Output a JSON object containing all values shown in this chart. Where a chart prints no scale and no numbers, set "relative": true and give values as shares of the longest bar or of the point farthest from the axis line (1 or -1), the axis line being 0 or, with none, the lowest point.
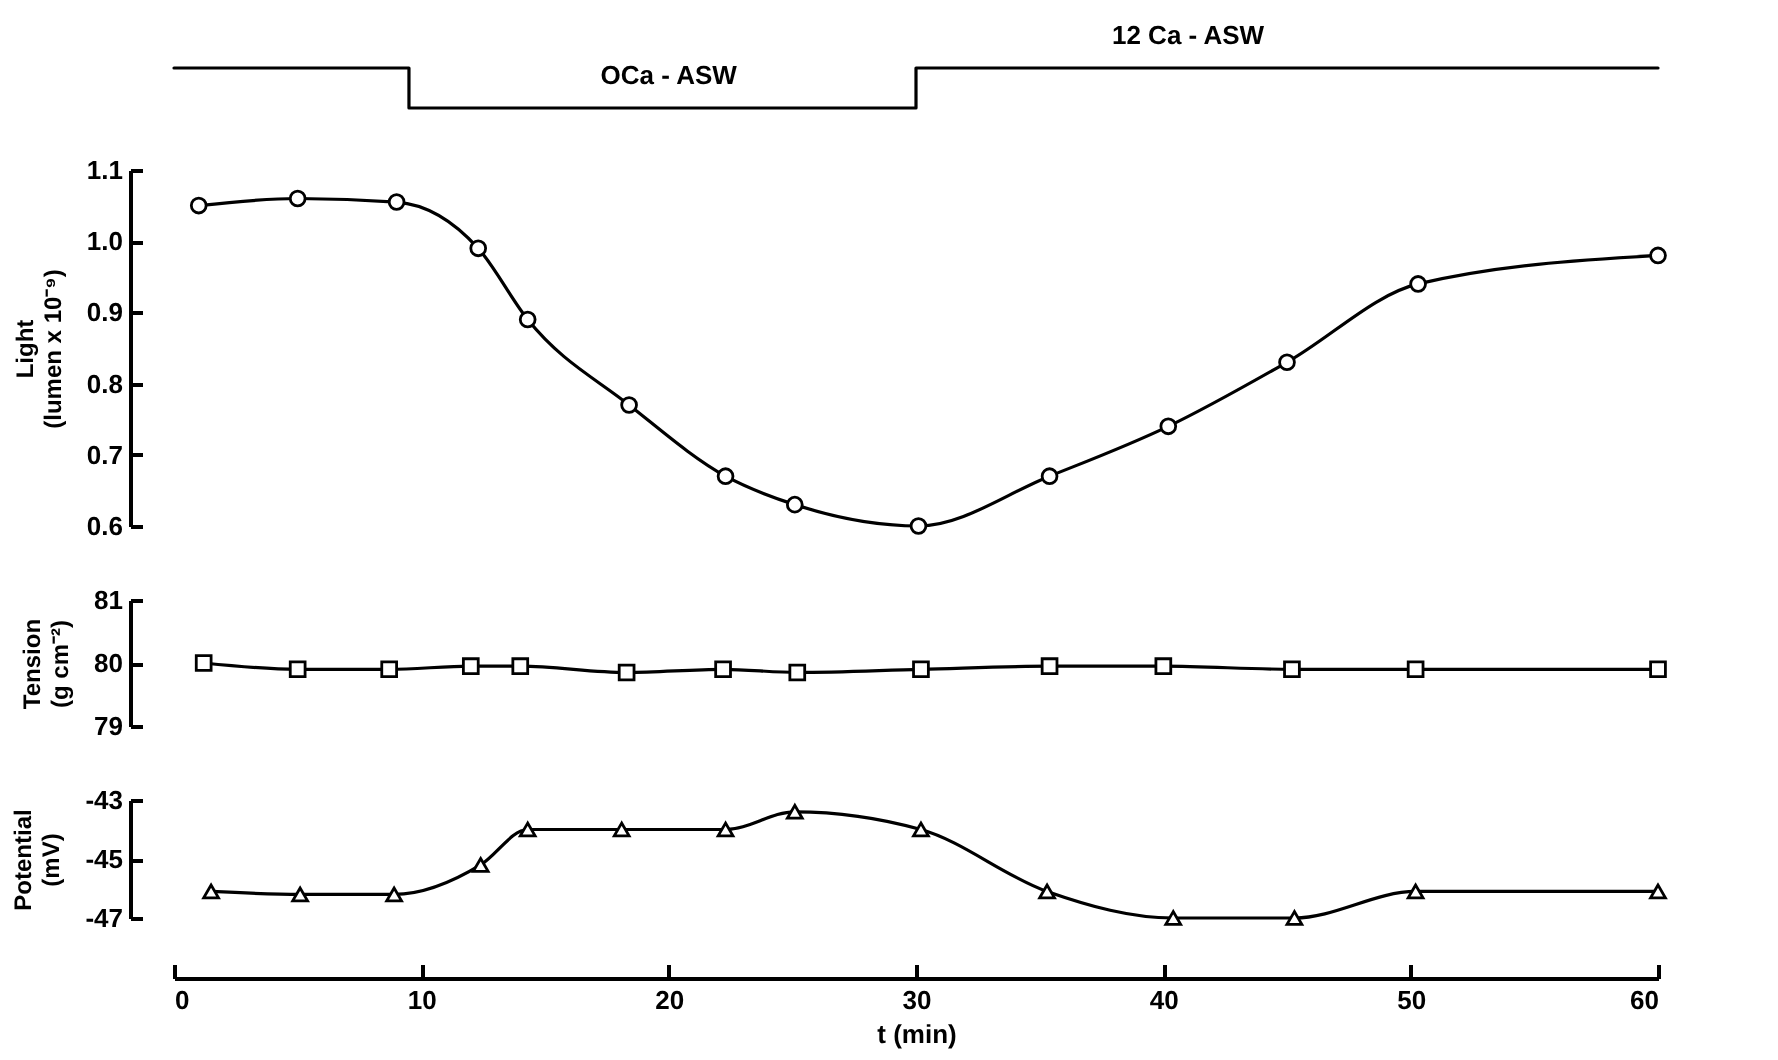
{
  "chart_data": [
    {
      "type": "step",
      "relative": true,
      "xlim": [
        0,
        60
      ],
      "series": [
        {
          "color": "#000000",
          "x": [
            0,
            9.5,
            30,
            60
          ],
          "values": [
            1,
            0,
            1,
            1
          ]
        }
      ],
      "annotations": [
        {
          "text": "OCa - ASW",
          "x": 20,
          "y": 0
        },
        {
          "text": "12 Ca - ASW",
          "x": 41,
          "y": 1
        }
      ]
    },
    {
      "type": "line",
      "ylabel": "Light\n(lumen x 10⁻⁹)",
      "xlim": [
        0,
        60
      ],
      "ylim": [
        0.6,
        1.1
      ],
      "yticks": [
        {
          "value": 0.6,
          "label": "0.6"
        },
        {
          "value": 0.7,
          "label": "0.7"
        },
        {
          "value": 0.8,
          "label": "0.8"
        },
        {
          "value": 0.9,
          "label": "0.9"
        },
        {
          "value": 1.0,
          "label": "1.0"
        },
        {
          "value": 1.1,
          "label": "1.1"
        }
      ],
      "tick_labels": "y",
      "marker": "circle",
      "line_style": "solid",
      "series": [
        {
          "color": "#000000",
          "x": [
            1,
            5,
            9,
            12.3,
            14.3,
            18.4,
            22.3,
            25.1,
            30.1,
            35.4,
            40.2,
            45,
            50.3,
            60
          ],
          "values": [
            1.05,
            1.06,
            1.055,
            0.99,
            0.89,
            0.77,
            0.67,
            0.63,
            0.6,
            0.67,
            0.74,
            0.83,
            0.94,
            0.98
          ]
        }
      ]
    },
    {
      "type": "line",
      "ylabel": "Tension\n(g cm⁻²)",
      "xlim": [
        0,
        60
      ],
      "ylim": [
        79,
        81
      ],
      "yticks": [
        79,
        80,
        81
      ],
      "tick_labels": "y",
      "marker": "square",
      "line_style": "solid",
      "series": [
        {
          "color": "#000000",
          "x": [
            1.2,
            5,
            8.7,
            12,
            14,
            18.3,
            22.2,
            25.2,
            30.2,
            35.4,
            40,
            45.2,
            50.2,
            60
          ],
          "values": [
            80.0,
            79.9,
            79.9,
            79.95,
            79.95,
            79.85,
            79.9,
            79.85,
            79.9,
            79.95,
            79.95,
            79.9,
            79.9,
            79.9
          ]
        }
      ]
    },
    {
      "type": "line",
      "ylabel": "Potential\n(mV)",
      "xlabel": "t (min)",
      "xlim": [
        0,
        60
      ],
      "xticks": [
        0,
        10,
        20,
        30,
        40,
        50,
        60
      ],
      "ylim": [
        -47,
        -43
      ],
      "yticks": [
        -47,
        -45,
        -43
      ],
      "marker": "triangle",
      "line_style": "solid",
      "series": [
        {
          "color": "#000000",
          "x": [
            1.5,
            5.1,
            8.9,
            12.4,
            14.3,
            18.1,
            22.3,
            25.1,
            30.2,
            35.3,
            40.4,
            45.3,
            50.2,
            60
          ],
          "values": [
            -46.1,
            -46.2,
            -46.2,
            -45.2,
            -44.0,
            -44.0,
            -44.0,
            -43.4,
            -44.0,
            -46.1,
            -47.0,
            -47.0,
            -46.1,
            -46.1
          ]
        }
      ]
    }
  ]
}
